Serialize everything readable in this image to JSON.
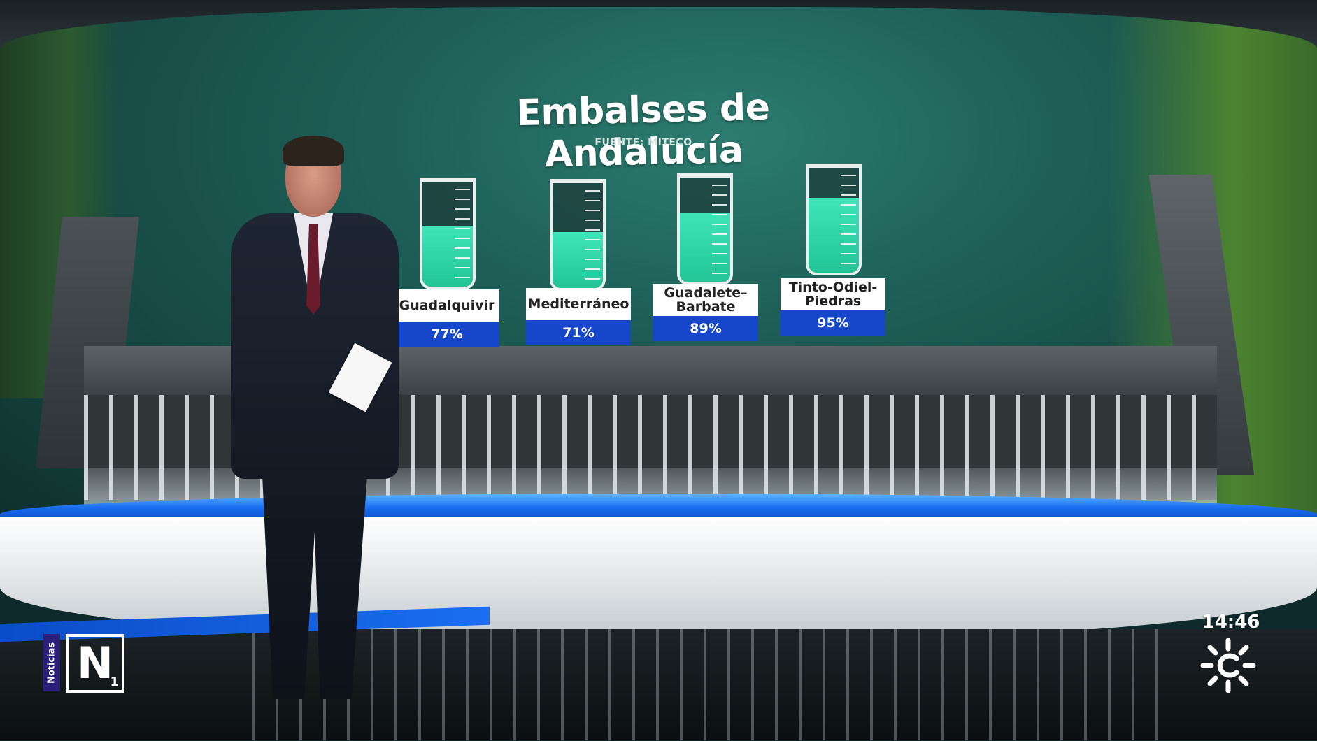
{
  "graphic": {
    "title": "Embalses de Andalucía",
    "source": "FUENTE: MITECO",
    "reservoirs": [
      {
        "name": "Guadalquivir",
        "percent": "77%",
        "level": 0.77
      },
      {
        "name": "Mediterráneo",
        "percent": "71%",
        "level": 0.71
      },
      {
        "name": "Guadalete–Barbate",
        "percent": "89%",
        "level": 0.89
      },
      {
        "name": "Tinto-Odiel-Piedras",
        "percent": "95%",
        "level": 0.95
      }
    ]
  },
  "bug": {
    "noticias": "Noticias",
    "n": "N",
    "one": "1"
  },
  "clock": "14:46",
  "colors": {
    "fill": "#2fd6aa",
    "label_blue": "#1646c9",
    "ribbon_blue": "#1a6ef0"
  }
}
